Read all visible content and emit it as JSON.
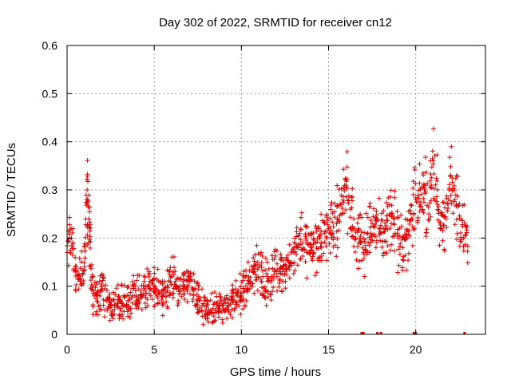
{
  "chart_data": {
    "type": "scatter",
    "title": "Day 302 of 2022, SRMTID for receiver cn12",
    "xlabel": "GPS time / hours",
    "ylabel": "SRMTID / TECUs",
    "xlim": [
      0,
      24
    ],
    "ylim": [
      0,
      0.6
    ],
    "xticks": [
      0,
      5,
      10,
      15,
      20
    ],
    "xtick_labels": [
      "0",
      "5",
      "10",
      "15",
      "20"
    ],
    "yticks": [
      0,
      0.1,
      0.2,
      0.3,
      0.4,
      0.5,
      0.6
    ],
    "ytick_labels": [
      "0",
      "0.1",
      "0.2",
      "0.3",
      "0.4",
      "0.5",
      "0.6"
    ],
    "grid": true,
    "marker": "+",
    "color": "#e00000",
    "series": [
      {
        "name": "SRMTID",
        "x": [
          0.0,
          0.25,
          0.5,
          0.75,
          1.0,
          1.15,
          1.25,
          1.35,
          1.5,
          1.75,
          2.0,
          2.25,
          2.5,
          2.75,
          3.0,
          3.25,
          3.5,
          3.75,
          4.0,
          4.25,
          4.5,
          4.75,
          5.0,
          5.25,
          5.5,
          5.75,
          6.0,
          6.25,
          6.5,
          6.75,
          7.0,
          7.25,
          7.5,
          7.75,
          8.0,
          8.25,
          8.5,
          8.75,
          9.0,
          9.25,
          9.5,
          9.75,
          10.0,
          10.25,
          10.5,
          10.75,
          11.0,
          11.25,
          11.5,
          11.75,
          12.0,
          12.25,
          12.5,
          12.75,
          13.0,
          13.25,
          13.5,
          13.75,
          14.0,
          14.25,
          14.5,
          14.75,
          15.0,
          15.25,
          15.5,
          15.75,
          16.0,
          16.25,
          16.5,
          16.75,
          17.0,
          17.25,
          17.5,
          17.75,
          18.0,
          18.25,
          18.5,
          18.75,
          19.0,
          19.25,
          19.5,
          19.75,
          20.0,
          20.25,
          20.5,
          20.75,
          21.0,
          21.25,
          21.5,
          21.75,
          22.0,
          22.25,
          22.5,
          22.75
        ],
        "y": [
          0.17,
          0.2,
          0.13,
          0.11,
          0.14,
          0.3,
          0.24,
          0.14,
          0.09,
          0.08,
          0.09,
          0.07,
          0.06,
          0.06,
          0.07,
          0.06,
          0.07,
          0.08,
          0.08,
          0.09,
          0.1,
          0.11,
          0.1,
          0.09,
          0.08,
          0.09,
          0.12,
          0.1,
          0.09,
          0.1,
          0.12,
          0.09,
          0.07,
          0.06,
          0.06,
          0.05,
          0.05,
          0.06,
          0.05,
          0.06,
          0.07,
          0.08,
          0.08,
          0.1,
          0.11,
          0.13,
          0.14,
          0.12,
          0.11,
          0.12,
          0.13,
          0.14,
          0.13,
          0.15,
          0.17,
          0.18,
          0.19,
          0.17,
          0.18,
          0.19,
          0.2,
          0.21,
          0.22,
          0.21,
          0.24,
          0.27,
          0.31,
          0.26,
          0.22,
          0.19,
          0.17,
          0.21,
          0.23,
          0.24,
          0.21,
          0.22,
          0.25,
          0.24,
          0.2,
          0.18,
          0.2,
          0.24,
          0.28,
          0.27,
          0.3,
          0.25,
          0.36,
          0.27,
          0.22,
          0.24,
          0.33,
          0.28,
          0.24,
          0.2
        ]
      }
    ],
    "baseline_marks_x": [
      16.9,
      17.0,
      17.8,
      18.0,
      19.9,
      20.0,
      22.8
    ]
  }
}
